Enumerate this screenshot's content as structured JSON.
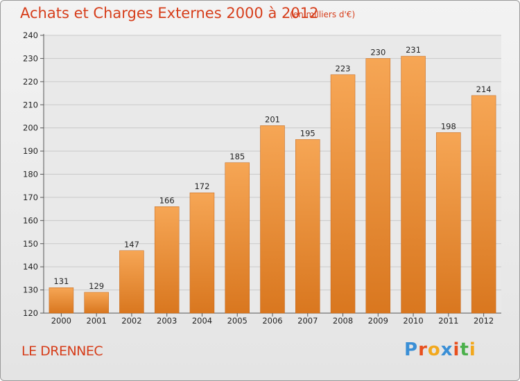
{
  "title": "Achats et Charges Externes 2000 à 2012",
  "subtitle": "(en milliers d'€)",
  "location": "LE DRENNEC",
  "logo": {
    "text": "Proxiti",
    "letters": [
      {
        "ch": "P",
        "color": "#3a8fd6"
      },
      {
        "ch": "r",
        "color": "#e8501e"
      },
      {
        "ch": "o",
        "color": "#f2a81d"
      },
      {
        "ch": "x",
        "color": "#3a8fd6"
      },
      {
        "ch": "i",
        "color": "#e8501e"
      },
      {
        "ch": "t",
        "color": "#4bb04b"
      },
      {
        "ch": "i",
        "color": "#f2a81d"
      }
    ]
  },
  "colors": {
    "title": "#d63d1a",
    "bar_top": "#f6a655",
    "bar_bottom": "#d9771f",
    "bar_outline": "#c0641a"
  },
  "chart_data": {
    "type": "bar",
    "categories": [
      "2000",
      "2001",
      "2002",
      "2003",
      "2004",
      "2005",
      "2006",
      "2007",
      "2008",
      "2009",
      "2010",
      "2011",
      "2012"
    ],
    "values": [
      131,
      129,
      147,
      166,
      172,
      185,
      201,
      195,
      223,
      230,
      231,
      198,
      214
    ],
    "ylim": [
      120,
      240
    ],
    "yticks": [
      120,
      130,
      140,
      150,
      160,
      170,
      180,
      190,
      200,
      210,
      220,
      230,
      240
    ],
    "grid": true,
    "xlabel": "",
    "ylabel": ""
  }
}
